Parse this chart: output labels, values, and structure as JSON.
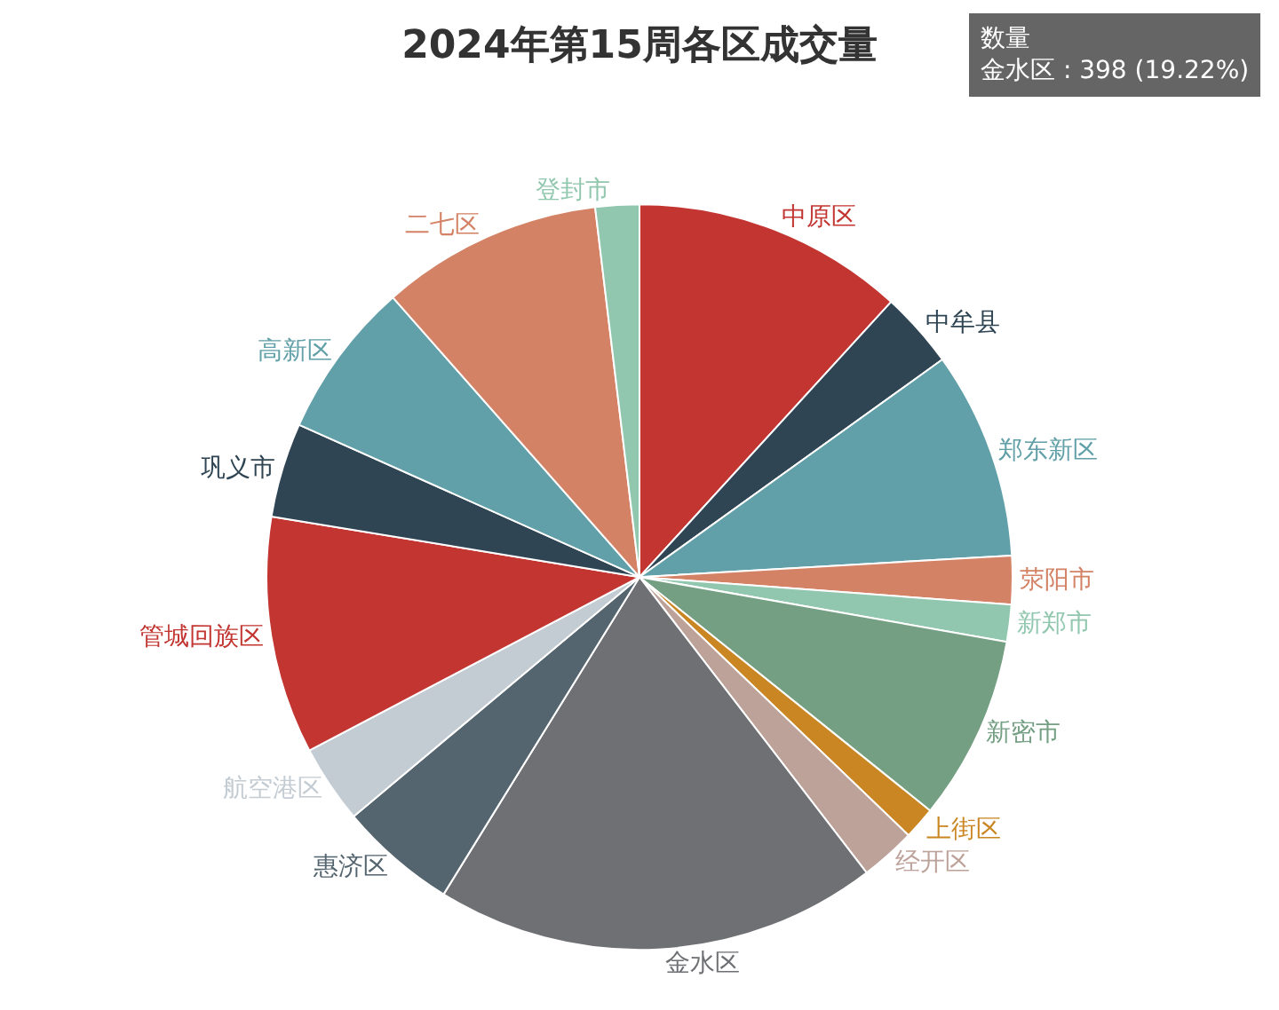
{
  "chart_data": {
    "type": "pie",
    "title": "2024年第15周各区成交量",
    "categories": [
      "中原区",
      "中牟县",
      "郑东新区",
      "荥阳市",
      "新郑市",
      "新密市",
      "上街区",
      "经开区",
      "金水区",
      "惠济区",
      "航空港区",
      "管城回族区",
      "巩义市",
      "高新区",
      "二七区",
      "登封市"
    ],
    "values": [
      11.78,
      3.3,
      9.0,
      2.1,
      1.6,
      8.0,
      1.4,
      2.4,
      19.22,
      5.1,
      3.4,
      10.3,
      4.1,
      6.8,
      9.6,
      1.9
    ],
    "colors": [
      "#c23531",
      "#2f4554",
      "#61a0a8",
      "#d48265",
      "#91c7ae",
      "#749f83",
      "#ca8622",
      "#bda29a",
      "#6e7074",
      "#546570",
      "#c4ccd3",
      "#c23531",
      "#2f4554",
      "#61a0a8",
      "#d48265",
      "#91c7ae"
    ],
    "annotations": [
      "数量",
      "金水区 : 398 (19.22%)"
    ],
    "legend": false
  }
}
